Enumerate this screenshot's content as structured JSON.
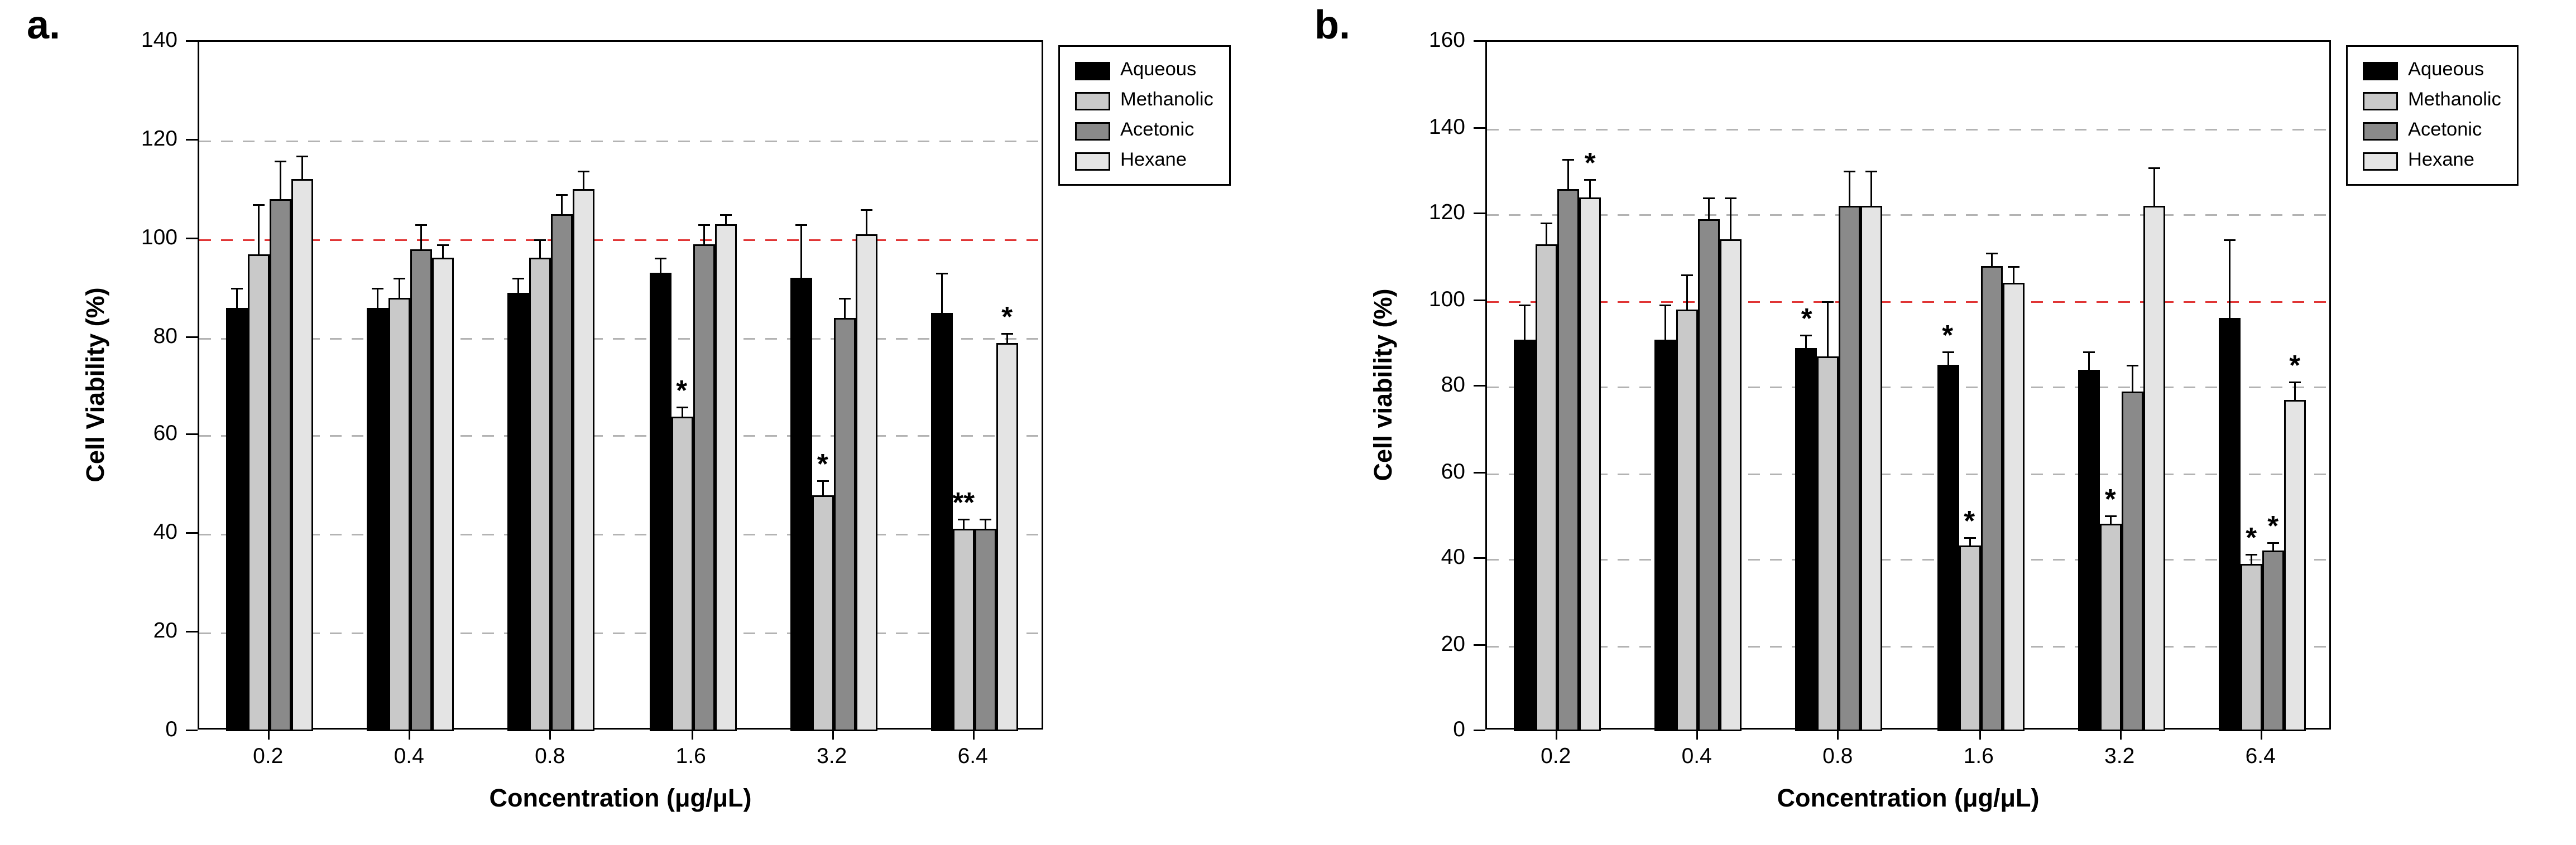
{
  "figure": {
    "background": "#ffffff",
    "reference_color": "#e03535",
    "grid_color": "#b3b3b3"
  },
  "chart_data": [
    {
      "type": "bar",
      "panel_label": "a.",
      "title": "",
      "xlabel": "Concentration (μg/μL)",
      "ylabel": "Cell Viability (%)",
      "ylim": [
        0,
        140
      ],
      "ytick_step": 20,
      "grid": true,
      "legend_position": "outside-top-right",
      "reference_line": {
        "y": 100,
        "color": "#e03535",
        "style": "dashed"
      },
      "categories": [
        "0.2",
        "0.4",
        "0.8",
        "1.6",
        "3.2",
        "6.4"
      ],
      "series": [
        {
          "name": "Aqueous",
          "color": "#000000",
          "values": [
            86,
            86,
            89,
            93,
            92,
            85
          ],
          "errors": [
            4,
            4,
            3,
            3,
            11,
            8
          ],
          "annotations": [
            "",
            "",
            "",
            "",
            "",
            ""
          ]
        },
        {
          "name": "Methanolic",
          "color": "#c9c9c9",
          "values": [
            97,
            88,
            96,
            64,
            48,
            41
          ],
          "errors": [
            10,
            4,
            4,
            2,
            3,
            2
          ],
          "annotations": [
            "",
            "",
            "",
            "*",
            "*",
            "**"
          ]
        },
        {
          "name": "Acetonic",
          "color": "#8a8a8a",
          "values": [
            108,
            98,
            105,
            99,
            84,
            41
          ],
          "errors": [
            8,
            5,
            4,
            4,
            4,
            2
          ],
          "annotations": [
            "",
            "",
            "",
            "",
            "",
            ""
          ]
        },
        {
          "name": "Hexane",
          "color": "#e4e4e4",
          "values": [
            112,
            96,
            110,
            103,
            101,
            79
          ],
          "errors": [
            5,
            3,
            4,
            2,
            5,
            2
          ],
          "annotations": [
            "",
            "",
            "",
            "",
            "",
            "*"
          ]
        }
      ]
    },
    {
      "type": "bar",
      "panel_label": "b.",
      "title": "",
      "xlabel": "Concentration (μg/μL)",
      "ylabel": "Cell viability (%)",
      "ylim": [
        0,
        160
      ],
      "ytick_step": 20,
      "grid": true,
      "legend_position": "outside-top-right",
      "reference_line": {
        "y": 100,
        "color": "#e03535",
        "style": "dashed"
      },
      "categories": [
        "0.2",
        "0.4",
        "0.8",
        "1.6",
        "3.2",
        "6.4"
      ],
      "series": [
        {
          "name": "Aqueous",
          "color": "#000000",
          "values": [
            91,
            91,
            89,
            85,
            84,
            96
          ],
          "errors": [
            8,
            8,
            3,
            3,
            4,
            18
          ],
          "annotations": [
            "",
            "",
            "*",
            "*",
            "",
            ""
          ]
        },
        {
          "name": "Methanolic",
          "color": "#c9c9c9",
          "values": [
            113,
            98,
            87,
            43,
            48,
            39
          ],
          "errors": [
            5,
            8,
            13,
            2,
            2,
            2
          ],
          "annotations": [
            "",
            "",
            "",
            "*",
            "*",
            "*"
          ]
        },
        {
          "name": "Acetonic",
          "color": "#8a8a8a",
          "values": [
            126,
            119,
            122,
            108,
            79,
            42
          ],
          "errors": [
            7,
            5,
            8,
            3,
            6,
            2
          ],
          "annotations": [
            "",
            "",
            "",
            "",
            "",
            "*"
          ]
        },
        {
          "name": "Hexane",
          "color": "#e4e4e4",
          "values": [
            124,
            114,
            122,
            104,
            122,
            77
          ],
          "errors": [
            4,
            10,
            8,
            4,
            9,
            4
          ],
          "annotations": [
            "*",
            "",
            "",
            "",
            "",
            "*"
          ]
        }
      ]
    }
  ]
}
